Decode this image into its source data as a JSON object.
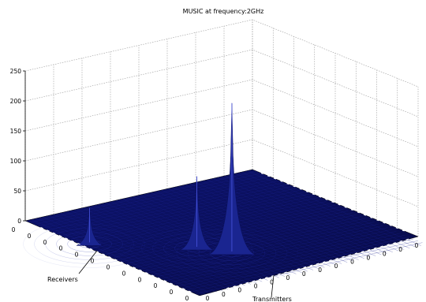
{
  "chart_data": {
    "type": "surface",
    "title": "MUSIC at frequency:2GHz",
    "xlabel": "Transmitters",
    "ylabel": "Receivers",
    "zlabel": "",
    "z_ticks": [
      0,
      50,
      100,
      150,
      200,
      250
    ],
    "zlim": [
      0,
      250
    ],
    "x_tick_labels": [
      "0",
      "0",
      "0",
      "0",
      "0",
      "0",
      "0",
      "0",
      "0",
      "0",
      "0",
      "0",
      "0",
      "0"
    ],
    "y_tick_labels": [
      "0",
      "0",
      "0",
      "0",
      "0",
      "0",
      "0",
      "0",
      "0",
      "0",
      "0",
      "0"
    ],
    "grid": true,
    "peaks": [
      {
        "x": 0.03,
        "y": 0.33,
        "value": 60
      },
      {
        "x": 0.31,
        "y": 0.58,
        "value": 120
      },
      {
        "x": 0.38,
        "y": 0.69,
        "value": 250
      }
    ],
    "surface_color": "#1a2590",
    "floor_color": "#0b0f55",
    "marker_color": "#ffffff"
  }
}
